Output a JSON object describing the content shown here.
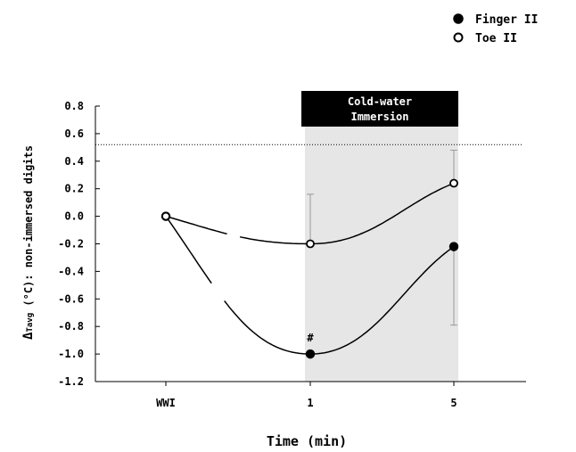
{
  "chart_data": {
    "type": "line",
    "categories": [
      "WWI",
      "1",
      "5"
    ],
    "xlabel": "Time (min)",
    "ylabel": "ΔTavg (°C): non-immersed digits",
    "ylabel_symbol": "Δ",
    "ylabel_sub": "Tavg",
    "ylabel_rest": " (°C): non-immersed digits",
    "ylim": [
      -1.2,
      0.8
    ],
    "yticks": [
      "0.8",
      "0.6",
      "0.4",
      "0.2",
      "0.0",
      "-0.2",
      "-0.4",
      "-0.6",
      "-0.8",
      "-1.0",
      "-1.2"
    ],
    "ytick_values": [
      0.8,
      0.6,
      0.4,
      0.2,
      0.0,
      -0.2,
      -0.4,
      -0.6,
      -0.8,
      -1.0,
      -1.2
    ],
    "series": [
      {
        "name": "Finger II",
        "marker": "filled-circle",
        "values": [
          0.0,
          -1.0,
          -0.22
        ],
        "error_upper": [
          null,
          null,
          -0.22
        ],
        "error_lower": [
          null,
          null,
          -0.79
        ]
      },
      {
        "name": "Toe II",
        "marker": "open-circle",
        "values": [
          0.0,
          -0.2,
          0.24
        ],
        "error_upper": [
          null,
          0.16,
          0.48
        ],
        "error_lower": [
          null,
          -0.2,
          0.24
        ]
      }
    ],
    "reference_line": {
      "y": 0.52,
      "style": "dotted"
    },
    "shaded_region": {
      "from_category": "1",
      "to_category": "5",
      "color": "#e6e6e6"
    },
    "banner": {
      "line1": "Cold-water",
      "line2": "Immersion"
    },
    "annotations": [
      {
        "text": "#",
        "category": "1",
        "series": "Finger II"
      }
    ],
    "legend_position": "top-right",
    "grid": false
  },
  "colors": {
    "shade": "#e6e6e6",
    "ink": "#000000",
    "banner_bg": "#000000",
    "banner_text": "#ffffff",
    "error_bar": "#999999"
  }
}
